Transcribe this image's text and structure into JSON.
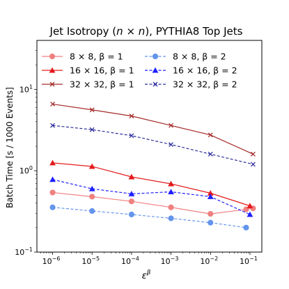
{
  "chart_data": {
    "type": "line",
    "title": "Jet Isotropy (n × n), PYTHIA8 Top Jets",
    "title_parts": {
      "prefix": "Jet Isotropy (",
      "n1": "n",
      "x": " × ",
      "n2": "n",
      "suffix": "), PYTHIA8 Top Jets"
    },
    "xlabel": "ε",
    "xlabel_sup": "β",
    "ylabel": "Batch Time [s / 1000 Events]",
    "x_scale": "log",
    "y_scale": "log",
    "xlim": [
      4e-07,
      0.2
    ],
    "ylim": [
      0.1,
      40
    ],
    "x_ticks": [
      {
        "value": 1e-06,
        "base": "10",
        "exp": "−6"
      },
      {
        "value": 1e-05,
        "base": "10",
        "exp": "−5"
      },
      {
        "value": 0.0001,
        "base": "10",
        "exp": "−4"
      },
      {
        "value": 0.001,
        "base": "10",
        "exp": "−3"
      },
      {
        "value": 0.01,
        "base": "10",
        "exp": "−2"
      },
      {
        "value": 0.1,
        "base": "10",
        "exp": "−1"
      }
    ],
    "y_ticks": [
      {
        "value": 0.1,
        "base": "10",
        "exp": "−1"
      },
      {
        "value": 1,
        "base": "10",
        "exp": "0"
      },
      {
        "value": 10,
        "base": "10",
        "exp": "1"
      }
    ],
    "grid": false,
    "legend_position": "top",
    "x": [
      1e-06,
      1e-05,
      0.0001,
      0.001,
      0.01,
      0.1
    ],
    "series": [
      {
        "name": "8 × 8, β = 1",
        "color": "#f08080",
        "marker": "circle",
        "dash": "solid",
        "x": [
          1e-06,
          1e-05,
          0.0001,
          0.001,
          0.01,
          0.08,
          0.12
        ],
        "values": [
          0.54,
          0.48,
          0.42,
          0.355,
          0.295,
          0.335,
          0.345
        ]
      },
      {
        "name": "16 × 16, β = 1",
        "color": "#e41a1c",
        "marker": "triangle",
        "dash": "solid",
        "x": [
          1e-06,
          1e-05,
          0.0001,
          0.001,
          0.01,
          0.1
        ],
        "values": [
          1.25,
          1.13,
          0.84,
          0.69,
          0.53,
          0.37
        ]
      },
      {
        "name": "32 × 32, β = 1",
        "color": "#a52a2a",
        "marker": "x",
        "dash": "solid",
        "x": [
          1e-06,
          1e-05,
          0.0001,
          0.001,
          0.01,
          0.12
        ],
        "values": [
          6.6,
          5.6,
          4.7,
          3.6,
          2.75,
          1.6
        ]
      },
      {
        "name": "8 × 8, β = 2",
        "color": "#6495ed",
        "marker": "circle",
        "dash": "dashed",
        "x": [
          1e-06,
          1e-05,
          0.0001,
          0.001,
          0.01,
          0.08
        ],
        "values": [
          0.355,
          0.32,
          0.29,
          0.26,
          0.23,
          0.2
        ]
      },
      {
        "name": "16 × 16, β = 2",
        "color": "#1f1fff",
        "marker": "triangle",
        "dash": "dashed",
        "x": [
          1e-06,
          1e-05,
          0.0001,
          0.001,
          0.01,
          0.1
        ],
        "values": [
          0.78,
          0.6,
          0.52,
          0.55,
          0.48,
          0.29
        ]
      },
      {
        "name": "32 × 32, β = 2",
        "color": "#2e2e9e",
        "marker": "x",
        "dash": "dashed",
        "x": [
          1e-06,
          1e-05,
          0.0001,
          0.001,
          0.01,
          0.12
        ],
        "values": [
          3.6,
          3.2,
          2.7,
          2.1,
          1.6,
          1.2
        ]
      }
    ]
  }
}
